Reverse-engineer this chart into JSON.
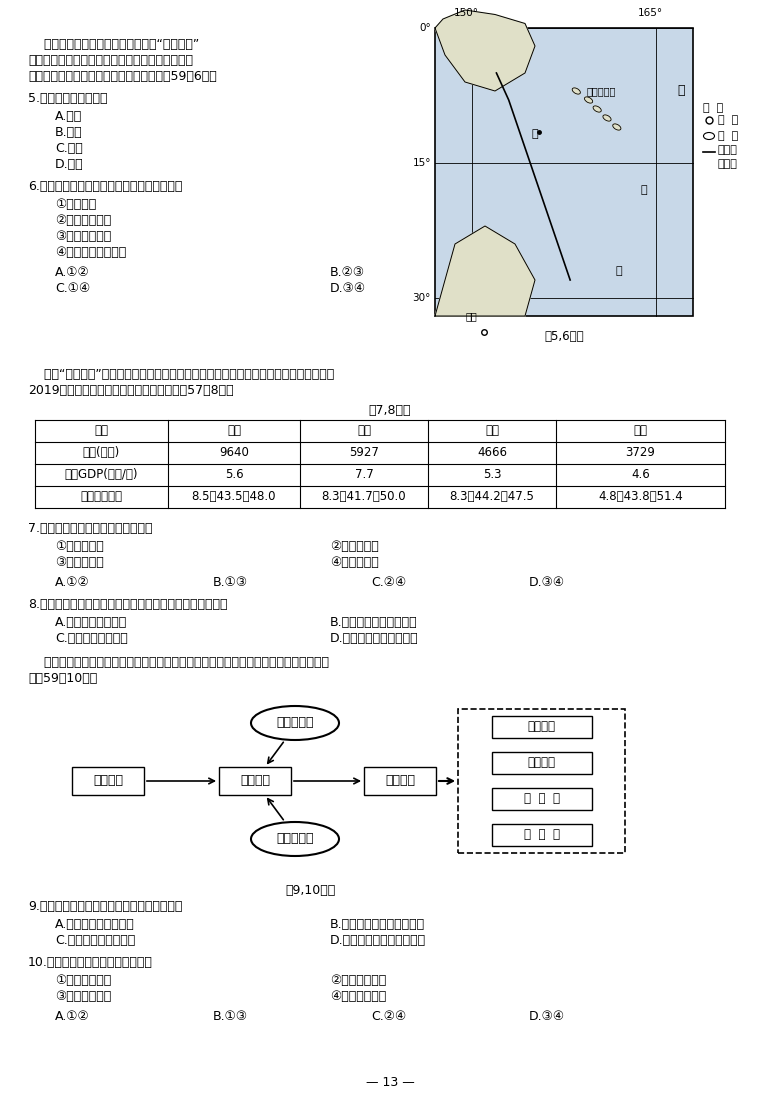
{
  "bg_color": "#ffffff",
  "text_color": "#000000",
  "page_number": "13",
  "para1_line1": "    海草为海洋中的高等被子植物，有“海洋之肺”",
  "para1_line2": "之称。近年来所罗门群岛种植海草，形成了独特的",
  "para1_line3": "生态系统。下图为世界部分区域略图。完成59、6题。",
  "q5_stem": "5.甲处海底宏观地形是",
  "q5_options": [
    "A.海沟",
    "B.海岭",
    "C.海盆",
    "D.裂谷"
  ],
  "q6_stem": "6.种植海草对当地海洋生态环境的有利影响有",
  "q6_items": [
    "①净化水质",
    "②提供农副产品",
    "③改变洋流性质",
    "④为鱼类提供栖息地"
  ],
  "q6_opts_left": [
    "A.①②",
    "C.①④"
  ],
  "q6_opts_right": [
    "B.②③",
    "D.③④"
  ],
  "para2_line1": "    随着“中部崛起”发展战略的实施，中部地区承接东部产业转移的能力不断提高。下表为",
  "para2_line2": "2019年中部四个省发展状况部分数据。完成57、8题。",
  "table_title": "第7,8题表",
  "table_headers": [
    "指标",
    "河南",
    "湖北",
    "江西",
    "山西"
  ],
  "table_row1": [
    "人口(万人)",
    "9640",
    "5927",
    "4666",
    "3729"
  ],
  "table_row2": [
    "人均GDP(万元/人)",
    "5.6",
    "7.7",
    "5.3",
    "4.6"
  ],
  "table_row3": [
    "三次产业结构",
    "8.5：43.5：48.0",
    "8.3：41.7：50.0",
    "8.3：44.2：47.5",
    "4.8：43.8：51.4"
  ],
  "q7_stem": "7.中部地区承接的产业类型，主要为",
  "q7_items_left": [
    "①资金密集型",
    "③劳动密集型"
  ],
  "q7_items_right": [
    "②技术密集型",
    "④资源密集型"
  ],
  "q7_options": [
    "A.①②",
    "B.①③",
    "C.②④",
    "D.③④"
  ],
  "q8_stem": "8.关于中部四个省承接产业转移比较优势的叙述，正确的是",
  "q8_opts_left": [
    "A.江西省经济水平高",
    "C.山西省农业基础好"
  ],
  "q8_opts_right": [
    "B.湖北省第二产业产値高",
    "D.河南省劳动力资源丰富"
  ],
  "para3_line1": "    目前半导体产业布局呼现分散趋势，形成全球生产系统。下图为半导体产业链示意图。",
  "para3_line2": "完成59，10题。",
  "diag_title": "第9,10题图",
  "q9_stem": "9.半导体产业布局呼现分散趋势，主要得益于",
  "q9_opts_left": [
    "A.区域发展协调性减弱",
    "C.地区间人才流动减少"
  ],
  "q9_opts_right": [
    "B.地区间信息联系更加便捷",
    "D.产业对自然资源依赖增强"
  ],
  "q10_stem": "10.半导体产业分散布局有利于企业",
  "q10_items_left": [
    "①推行清洁生产",
    "③提升技术水平"
  ],
  "q10_items_right": [
    "②避免无序竞争",
    "④降低生产成本"
  ],
  "q10_options": [
    "A.①②",
    "B.①③",
    "C.②④",
    "D.③④"
  ]
}
